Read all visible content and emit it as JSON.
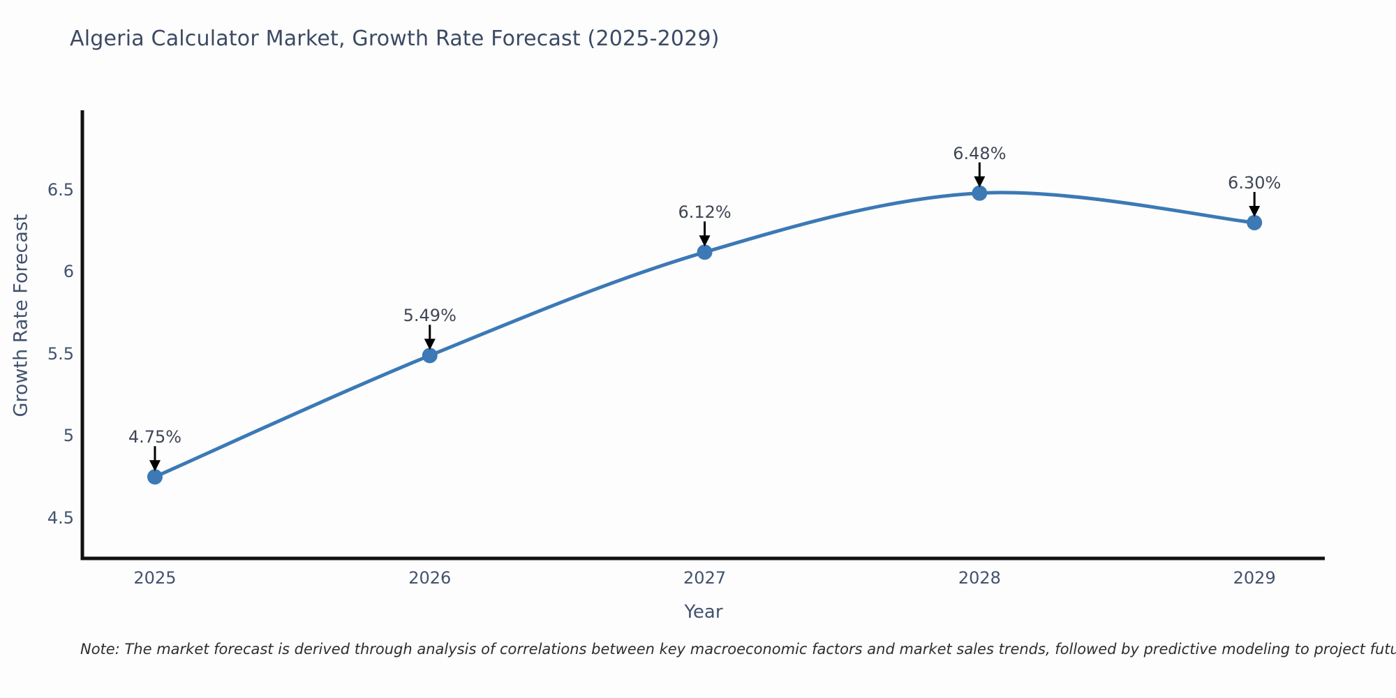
{
  "title": "Algeria Calculator Market, Growth Rate Forecast (2025-2029)",
  "note": "Note: The market forecast is derived through analysis of correlations between key macroeconomic factors and market sales trends, followed by predictive modeling to project future sales",
  "chart_data": {
    "type": "line",
    "line_shape": "spline",
    "title": "Algeria Calculator Market, Growth Rate Forecast (2025-2029)",
    "xlabel": "Year",
    "ylabel": "Growth Rate Forecast",
    "x": [
      2025,
      2026,
      2027,
      2028,
      2029
    ],
    "values": [
      4.75,
      5.49,
      6.12,
      6.48,
      6.3
    ],
    "point_labels": [
      "4.75%",
      "5.49%",
      "6.12%",
      "6.48%",
      "6.30%"
    ],
    "x_tick_labels": [
      "2025",
      "2026",
      "2027",
      "2028",
      "2029"
    ],
    "y_ticks": [
      6.5,
      6.0,
      5.5,
      5.0,
      4.5
    ],
    "y_tick_labels": [
      "6.5",
      "6",
      "5.5",
      "5",
      "4.5"
    ],
    "xlim": [
      2024.736,
      2029.256
    ],
    "ylim": [
      4.253,
      6.985
    ],
    "grid": false,
    "legend": "none",
    "markers": true,
    "annotation_arrows": "down",
    "colors": {
      "line": "#3c79b5",
      "marker": "#3c79b5",
      "axis": "#111111",
      "tick_text": "#42526e",
      "annotation_text": "#3f4654",
      "arrow": "#000000",
      "title_text": "#3b4a63",
      "background": "#fdfdfd"
    }
  }
}
